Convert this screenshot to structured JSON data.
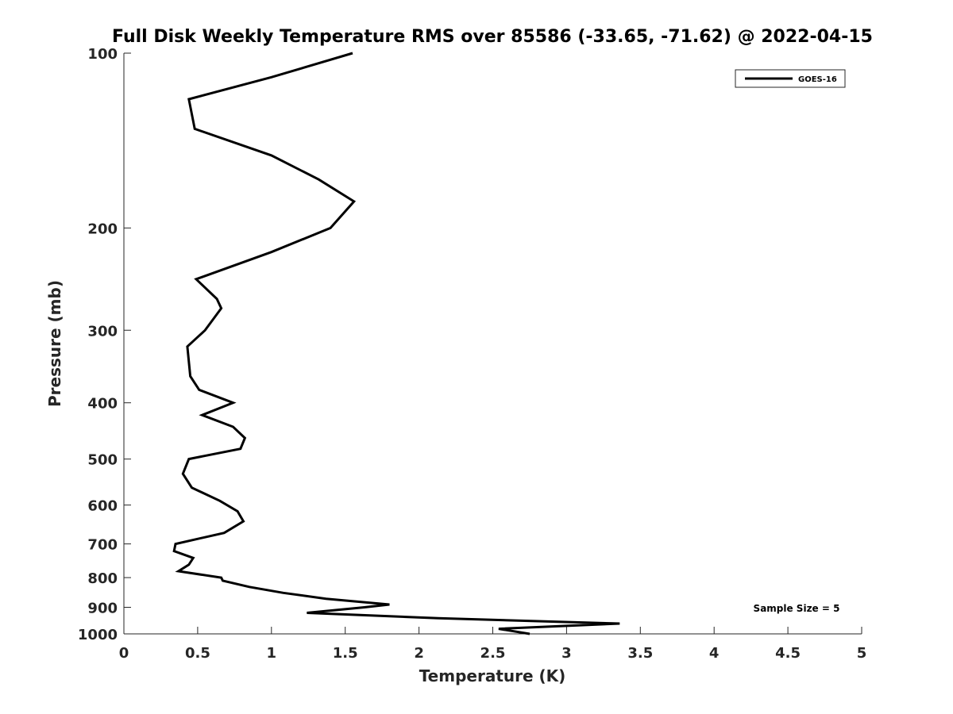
{
  "chart_data": {
    "type": "line",
    "title": "Full Disk Weekly Temperature RMS over 85586 (-33.65, -71.62) @ 2022-04-15",
    "xlabel": "Temperature (K)",
    "ylabel": "Pressure (mb)",
    "xlim": [
      0,
      5
    ],
    "ylim": [
      100,
      1000
    ],
    "y_scale": "log",
    "y_reversed": true,
    "x_ticks": [
      "0",
      "0.5",
      "1",
      "1.5",
      "2",
      "2.5",
      "3",
      "3.5",
      "4",
      "4.5",
      "5"
    ],
    "y_ticks": [
      "100",
      "200",
      "300",
      "400",
      "500",
      "600",
      "700",
      "800",
      "900",
      "1000"
    ],
    "grid": false,
    "legend_position": "top-right",
    "colors": {
      "line": "#000000",
      "axis": "#262626"
    },
    "series": [
      {
        "name": "GOES-16",
        "x": [
          1.55,
          1.0,
          0.44,
          0.48,
          1.0,
          1.32,
          1.56,
          1.4,
          1.0,
          0.49,
          0.63,
          0.66,
          0.55,
          0.43,
          0.44,
          0.45,
          0.51,
          0.74,
          0.53,
          0.74,
          0.82,
          0.79,
          0.44,
          0.4,
          0.46,
          0.65,
          0.77,
          0.81,
          0.68,
          0.35,
          0.34,
          0.47,
          0.44,
          0.37,
          0.66,
          0.67,
          0.85,
          1.08,
          1.37,
          1.8,
          1.63,
          1.24,
          2.13,
          3.36,
          2.54,
          2.75
        ],
        "y": [
          100,
          110,
          120,
          135,
          150,
          165,
          180,
          200,
          220,
          245,
          265,
          275,
          300,
          320,
          340,
          360,
          380,
          400,
          420,
          440,
          460,
          480,
          500,
          530,
          560,
          590,
          615,
          640,
          670,
          700,
          720,
          740,
          760,
          780,
          800,
          810,
          830,
          850,
          870,
          890,
          900,
          920,
          940,
          960,
          980,
          1000
        ]
      }
    ],
    "annotations": [
      "Sample Size = 5"
    ]
  }
}
